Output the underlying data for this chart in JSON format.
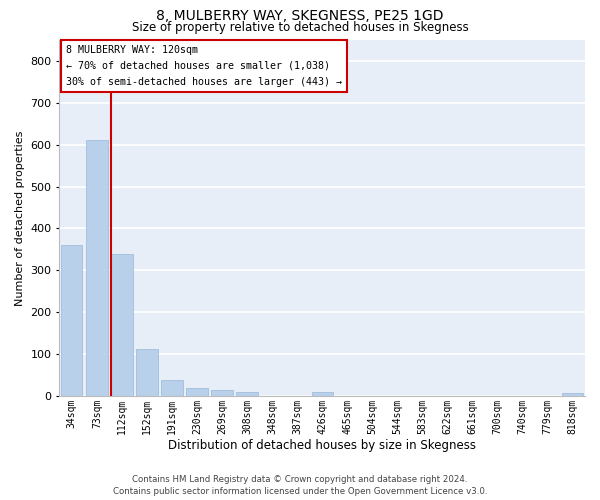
{
  "title": "8, MULBERRY WAY, SKEGNESS, PE25 1GD",
  "subtitle": "Size of property relative to detached houses in Skegness",
  "xlabel": "Distribution of detached houses by size in Skegness",
  "ylabel": "Number of detached properties",
  "categories": [
    "34sqm",
    "73sqm",
    "112sqm",
    "152sqm",
    "191sqm",
    "230sqm",
    "269sqm",
    "308sqm",
    "348sqm",
    "387sqm",
    "426sqm",
    "465sqm",
    "504sqm",
    "544sqm",
    "583sqm",
    "622sqm",
    "661sqm",
    "700sqm",
    "740sqm",
    "779sqm",
    "818sqm"
  ],
  "values": [
    360,
    610,
    338,
    113,
    38,
    20,
    15,
    9,
    0,
    0,
    9,
    0,
    0,
    0,
    0,
    0,
    0,
    0,
    0,
    0,
    8
  ],
  "bar_color": "#b8d0ea",
  "bar_edge_color": "#96b8d8",
  "background_color": "#e8eef8",
  "grid_color": "#ffffff",
  "vline_color": "#cc0000",
  "vline_pos": 1.58,
  "annotation_lines": [
    "8 MULBERRY WAY: 120sqm",
    "← 70% of detached houses are smaller (1,038)",
    "30% of semi-detached houses are larger (443) →"
  ],
  "annotation_box_color": "#ffffff",
  "annotation_box_edge_color": "#cc0000",
  "ylim": [
    0,
    850
  ],
  "yticks": [
    0,
    100,
    200,
    300,
    400,
    500,
    600,
    700,
    800
  ],
  "footer_line1": "Contains HM Land Registry data © Crown copyright and database right 2024.",
  "footer_line2": "Contains public sector information licensed under the Open Government Licence v3.0."
}
